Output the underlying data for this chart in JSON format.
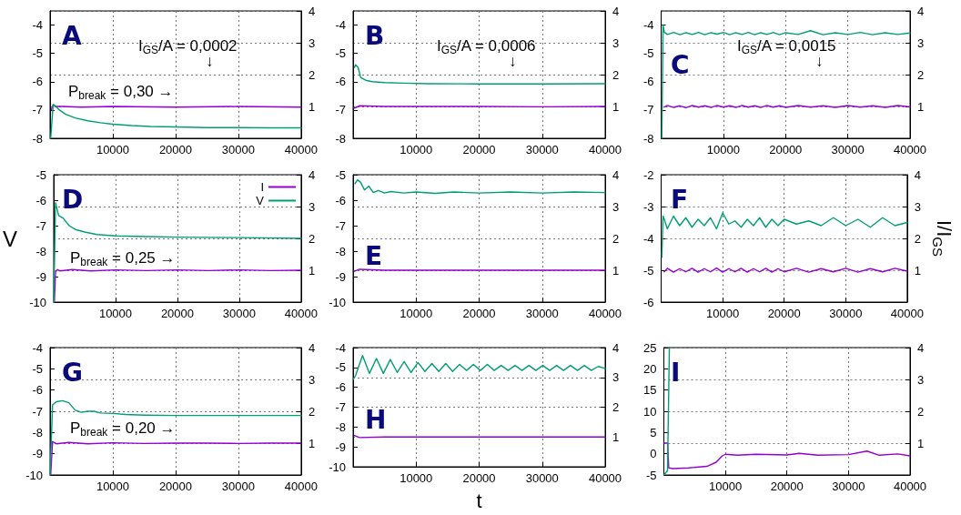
{
  "chart_data": [
    {
      "type": "line",
      "title": "A",
      "xlim": [
        0,
        40000
      ],
      "xticks": [
        10000,
        20000,
        30000,
        40000
      ],
      "ylim": [
        -8,
        -3.5
      ],
      "yticks": [
        -8,
        -7,
        -6,
        -5,
        -4
      ],
      "y2lim": [
        0,
        4
      ],
      "y2ticks": [
        1,
        2,
        3,
        4
      ],
      "grid": true,
      "marker": "none",
      "line_style": "solid",
      "annotations": [
        "I$_{GS}$/A = 0,0002",
        "↓",
        "P$_{break}$ = 0,30 →"
      ],
      "series": [
        {
          "color": "#9400d3",
          "axis": "y2",
          "x": [
            200,
            500,
            1000,
            2000,
            5000,
            10000,
            20000,
            30000,
            40000
          ],
          "values": [
            0.9,
            1.05,
            1.0,
            1.0,
            0.98,
            1.0,
            0.98,
            1.0,
            0.98
          ]
        },
        {
          "color": "#009e73",
          "x": [
            100,
            500,
            800,
            1500,
            2500,
            4000,
            6000,
            8000,
            10000,
            13000,
            16000,
            20000,
            25000,
            30000,
            35000,
            40000
          ],
          "values": [
            -8,
            -6.8,
            -6.85,
            -7.0,
            -7.15,
            -7.28,
            -7.38,
            -7.45,
            -7.5,
            -7.55,
            -7.58,
            -7.6,
            -7.62,
            -7.62,
            -7.63,
            -7.63
          ]
        }
      ]
    },
    {
      "type": "line",
      "title": "B",
      "xlim": [
        0,
        40000
      ],
      "xticks": [
        10000,
        20000,
        30000,
        40000
      ],
      "ylim": [
        -8,
        -3.5
      ],
      "yticks": [
        -8,
        -7,
        -6,
        -5,
        -4
      ],
      "y2lim": [
        0,
        4
      ],
      "y2ticks": [
        1,
        2,
        3,
        4
      ],
      "grid": true,
      "marker": "none",
      "line_style": "solid",
      "annotations": [
        "I$_{GS}$/A = 0,0006",
        "↓"
      ],
      "series": [
        {
          "color": "#9400d3",
          "axis": "y2",
          "x": [
            200,
            1000,
            5000,
            10000,
            20000,
            30000,
            40000
          ],
          "values": [
            0.95,
            1.02,
            1.0,
            1.0,
            1.0,
            0.99,
            1.0
          ]
        },
        {
          "color": "#009e73",
          "x": [
            200,
            400,
            800,
            1200,
            2000,
            3000,
            5000,
            8000,
            12000,
            20000,
            30000,
            40000
          ],
          "values": [
            -5.5,
            -5.4,
            -5.5,
            -5.85,
            -5.95,
            -6.0,
            -6.03,
            -6.05,
            -6.07,
            -6.08,
            -6.08,
            -6.07
          ]
        }
      ]
    },
    {
      "type": "line",
      "title": "C",
      "xlim": [
        0,
        40000
      ],
      "xticks": [
        10000,
        20000,
        30000,
        40000
      ],
      "ylim": [
        -8,
        -3.5
      ],
      "yticks": [
        -8,
        -7,
        -6,
        -5,
        -4
      ],
      "y2lim": [
        0,
        4
      ],
      "y2ticks": [
        1,
        2,
        3,
        4
      ],
      "grid": true,
      "marker": "none",
      "line_style": "solid",
      "annotations": [
        "I$_{GS}$/A = 0,0015",
        "↓"
      ],
      "series": [
        {
          "color": "#9400d3",
          "axis": "y2",
          "x": [
            500,
            1000,
            2000,
            3000,
            4000,
            5000,
            6000,
            7000,
            8000,
            9000,
            10000,
            11000,
            12000,
            13000,
            14000,
            15000,
            16000,
            17000,
            18000,
            19000,
            20000,
            22000,
            24000,
            26000,
            28000,
            30000,
            32000,
            34000,
            36000,
            38000,
            40000
          ],
          "values": [
            0.98,
            1.03,
            0.97,
            1.02,
            0.96,
            1.03,
            0.98,
            1.02,
            0.97,
            1.03,
            0.98,
            1.02,
            0.97,
            1.03,
            0.98,
            1.02,
            0.97,
            1.03,
            0.98,
            1.02,
            0.97,
            1.03,
            0.98,
            1.02,
            0.97,
            1.03,
            0.98,
            1.02,
            0.97,
            1.03,
            0.99
          ]
        },
        {
          "color": "#009e73",
          "x": [
            100,
            300,
            500,
            1000,
            2000,
            3000,
            4000,
            5000,
            6000,
            7000,
            8000,
            9000,
            10000,
            11000,
            12000,
            13000,
            14000,
            15000,
            16000,
            17000,
            18000,
            19000,
            20000,
            22000,
            24000,
            26000,
            28000,
            30000,
            32000,
            34000,
            36000,
            38000,
            40000
          ],
          "values": [
            -8,
            -4.0,
            -4.25,
            -4.33,
            -4.26,
            -4.34,
            -4.27,
            -4.33,
            -4.26,
            -4.34,
            -4.27,
            -4.32,
            -4.26,
            -4.34,
            -4.27,
            -4.33,
            -4.26,
            -4.34,
            -4.27,
            -4.33,
            -4.26,
            -4.34,
            -4.27,
            -4.33,
            -4.2,
            -4.34,
            -4.27,
            -4.33,
            -4.26,
            -4.34,
            -4.27,
            -4.33,
            -4.28
          ]
        }
      ]
    },
    {
      "type": "line",
      "title": "D",
      "ylabel": "V",
      "legend": "top right",
      "xlim": [
        0,
        40000
      ],
      "xticks": [
        10000,
        20000,
        30000,
        40000
      ],
      "ylim": [
        -10,
        -5
      ],
      "yticks": [
        -10,
        -9,
        -8,
        -7,
        -6,
        -5
      ],
      "y2lim": [
        0,
        4
      ],
      "y2ticks": [
        1,
        2,
        3,
        4
      ],
      "grid": true,
      "marker": "none",
      "line_style": "solid",
      "annotations": [
        "P$_{break}$ = 0,25 →"
      ],
      "series": [
        {
          "name": "I",
          "color": "#9400d3",
          "axis": "y2",
          "x": [
            100,
            300,
            600,
            1000,
            3000,
            6000,
            10000,
            15000,
            20000,
            25000,
            30000,
            35000,
            40000
          ],
          "values": [
            0,
            0.95,
            1.02,
            0.98,
            1.02,
            0.98,
            1.01,
            0.99,
            1.01,
            0.99,
            1.01,
            0.99,
            1.0
          ]
        },
        {
          "name": "V",
          "color": "#009e73",
          "x": [
            0,
            300,
            800,
            1500,
            2500,
            3500,
            5000,
            7000,
            10000,
            15000,
            20000,
            30000,
            40000
          ],
          "values": [
            -10,
            -6.1,
            -6.6,
            -6.7,
            -7.0,
            -7.15,
            -7.25,
            -7.35,
            -7.4,
            -7.43,
            -7.45,
            -7.47,
            -7.5
          ]
        }
      ]
    },
    {
      "type": "line",
      "title": "E",
      "xlim": [
        0,
        40000
      ],
      "xticks": [
        10000,
        20000,
        30000,
        40000
      ],
      "ylim": [
        -10,
        -5
      ],
      "yticks": [
        -10,
        -9,
        -8,
        -7,
        -6,
        -5
      ],
      "y2lim": [
        0,
        4
      ],
      "y2ticks": [
        1,
        2,
        3,
        4
      ],
      "grid": true,
      "marker": "none",
      "line_style": "solid",
      "series": [
        {
          "color": "#9400d3",
          "axis": "y2",
          "x": [
            200,
            1000,
            5000,
            10000,
            20000,
            30000,
            40000
          ],
          "values": [
            0.97,
            1.03,
            1.0,
            1.0,
            1.0,
            1.0,
            1.0
          ]
        },
        {
          "color": "#009e73",
          "x": [
            300,
            700,
            1200,
            1800,
            2500,
            3200,
            4000,
            5000,
            6000,
            8000,
            10000,
            13000,
            16000,
            20000,
            25000,
            30000,
            35000,
            40000
          ],
          "values": [
            -5.35,
            -5.2,
            -5.3,
            -5.6,
            -5.45,
            -5.7,
            -5.62,
            -5.72,
            -5.66,
            -5.72,
            -5.68,
            -5.73,
            -5.68,
            -5.72,
            -5.68,
            -5.72,
            -5.68,
            -5.7
          ]
        }
      ]
    },
    {
      "type": "line",
      "title": "F",
      "y2label": "I/I$_{GS}$",
      "xlim": [
        0,
        40000
      ],
      "xticks": [
        10000,
        20000,
        30000,
        40000
      ],
      "ylim": [
        -6,
        -2
      ],
      "yticks": [
        -6,
        -5,
        -4,
        -3,
        -2
      ],
      "y2lim": [
        0,
        4
      ],
      "y2ticks": [
        1,
        2,
        3,
        4
      ],
      "grid": true,
      "marker": "none",
      "line_style": "solid",
      "series": [
        {
          "color": "#9400d3",
          "axis": "y2",
          "x": [
            500,
            1000,
            2000,
            3000,
            4000,
            5000,
            6000,
            7000,
            8000,
            9000,
            10000,
            11000,
            12000,
            13000,
            14000,
            15000,
            16000,
            17000,
            18000,
            19000,
            20000,
            22000,
            24000,
            26000,
            28000,
            30000,
            32000,
            34000,
            36000,
            38000,
            40000
          ],
          "values": [
            0.95,
            1.06,
            0.94,
            1.05,
            0.95,
            1.06,
            0.94,
            1.05,
            0.95,
            1.07,
            0.94,
            1.05,
            0.95,
            1.06,
            0.94,
            1.05,
            0.95,
            1.06,
            0.94,
            1.05,
            0.95,
            1.06,
            0.94,
            1.05,
            0.95,
            1.06,
            0.94,
            1.05,
            0.95,
            1.06,
            0.97
          ]
        },
        {
          "color": "#009e73",
          "x": [
            100,
            300,
            500,
            1000,
            2000,
            3000,
            4000,
            5000,
            6000,
            7000,
            8000,
            9000,
            10000,
            11000,
            12000,
            13000,
            14000,
            15000,
            16000,
            17000,
            18000,
            19000,
            20000,
            22000,
            24000,
            26000,
            28000,
            30000,
            32000,
            34000,
            36000,
            38000,
            40000
          ],
          "values": [
            -4.6,
            -3.3,
            -3.4,
            -3.7,
            -3.3,
            -3.6,
            -3.35,
            -3.65,
            -3.4,
            -3.6,
            -3.35,
            -3.7,
            -3.2,
            -3.55,
            -3.45,
            -3.65,
            -3.4,
            -3.6,
            -3.35,
            -3.65,
            -3.4,
            -3.6,
            -3.4,
            -3.55,
            -3.45,
            -3.6,
            -3.35,
            -3.6,
            -3.4,
            -3.65,
            -3.35,
            -3.6,
            -3.5
          ]
        }
      ]
    },
    {
      "type": "line",
      "title": "G",
      "xlim": [
        0,
        40000
      ],
      "xticks": [
        10000,
        20000,
        30000,
        40000
      ],
      "ylim": [
        -10,
        -4
      ],
      "yticks": [
        -10,
        -9,
        -8,
        -7,
        -6,
        -5,
        -4
      ],
      "y2lim": [
        0,
        4
      ],
      "y2ticks": [
        1,
        2,
        3,
        4
      ],
      "grid": true,
      "marker": "none",
      "line_style": "solid",
      "annotations": [
        "P$_{break}$ = 0,20 →"
      ],
      "series": [
        {
          "color": "#9400d3",
          "axis": "y2",
          "x": [
            100,
            400,
            1000,
            3000,
            6000,
            10000,
            15000,
            20000,
            25000,
            30000,
            35000,
            40000
          ],
          "values": [
            0,
            1.05,
            0.98,
            1.02,
            0.98,
            1.01,
            0.99,
            1.0,
            1.0,
            0.99,
            1.0,
            1.0
          ]
        },
        {
          "color": "#009e73",
          "x": [
            0,
            400,
            1000,
            2000,
            3000,
            4000,
            5000,
            6000,
            7000,
            8000,
            10000,
            12000,
            15000,
            20000,
            30000,
            40000
          ],
          "values": [
            -10,
            -6.7,
            -6.55,
            -6.5,
            -6.6,
            -6.95,
            -7.05,
            -7.0,
            -7.0,
            -7.08,
            -7.1,
            -7.15,
            -7.18,
            -7.2,
            -7.2,
            -7.2
          ]
        }
      ]
    },
    {
      "type": "line",
      "title": "H",
      "xlabel": "t",
      "xlim": [
        0,
        40000
      ],
      "xticks": [
        10000,
        20000,
        30000,
        40000
      ],
      "ylim": [
        -10,
        -4
      ],
      "yticks": [
        -10,
        -9,
        -8,
        -7,
        -6,
        -5,
        -4
      ],
      "y2lim": [
        0,
        4
      ],
      "y2ticks": [
        1,
        2,
        3,
        4
      ],
      "grid": true,
      "marker": "none",
      "line_style": "solid",
      "series": [
        {
          "color": "#9400d3",
          "axis": "y2",
          "x": [
            200,
            1000,
            5000,
            10000,
            20000,
            30000,
            40000
          ],
          "values": [
            1.05,
            0.98,
            1.0,
            1.0,
            1.0,
            1.0,
            1.0
          ]
        },
        {
          "color": "#009e73",
          "x": [
            0,
            400,
            1500,
            2600,
            3700,
            4800,
            5900,
            7000,
            8100,
            9200,
            10300,
            11400,
            12500,
            13600,
            14700,
            15800,
            16900,
            18000,
            19100,
            20200,
            21300,
            22400,
            23500,
            24600,
            25700,
            26800,
            27900,
            29000,
            30100,
            31200,
            32300,
            33400,
            34500,
            35600,
            36700,
            37800,
            38900,
            40000
          ],
          "values": [
            -5.6,
            -5.4,
            -4.4,
            -5.3,
            -4.55,
            -5.3,
            -4.6,
            -5.25,
            -4.7,
            -5.25,
            -4.75,
            -5.2,
            -4.8,
            -5.2,
            -4.8,
            -5.2,
            -4.85,
            -5.15,
            -4.85,
            -5.15,
            -4.85,
            -5.15,
            -4.9,
            -5.15,
            -4.9,
            -5.15,
            -4.9,
            -5.15,
            -4.9,
            -5.15,
            -4.9,
            -5.15,
            -4.9,
            -5.15,
            -4.9,
            -5.15,
            -4.95,
            -5.05
          ]
        }
      ]
    },
    {
      "type": "line",
      "title": "I",
      "xlim": [
        0,
        40000
      ],
      "xticks": [
        10000,
        20000,
        30000,
        40000
      ],
      "ylim": [
        -5,
        25
      ],
      "yticks": [
        -5,
        0,
        5,
        10,
        15,
        20,
        25
      ],
      "y2lim": [
        0,
        4
      ],
      "y2ticks": [
        1,
        2,
        3,
        4
      ],
      "grid": true,
      "marker": "none",
      "line_style": "solid",
      "series": [
        {
          "color": "#9400d3",
          "axis": "y2",
          "x": [
            0,
            600,
            800,
            1500,
            4000,
            7000,
            8500,
            9500,
            10000,
            12000,
            15000,
            20000,
            22000,
            25000,
            30000,
            33000,
            35000,
            38000,
            40000
          ],
          "values": [
            1.0,
            1.0,
            0.22,
            0.2,
            0.22,
            0.27,
            0.4,
            0.6,
            0.65,
            0.62,
            0.65,
            0.63,
            0.68,
            0.62,
            0.64,
            0.75,
            0.62,
            0.66,
            0.6
          ]
        },
        {
          "color": "#009e73",
          "x": [
            0,
            600,
            900
          ],
          "values": [
            -5,
            -4,
            25
          ]
        }
      ]
    }
  ]
}
